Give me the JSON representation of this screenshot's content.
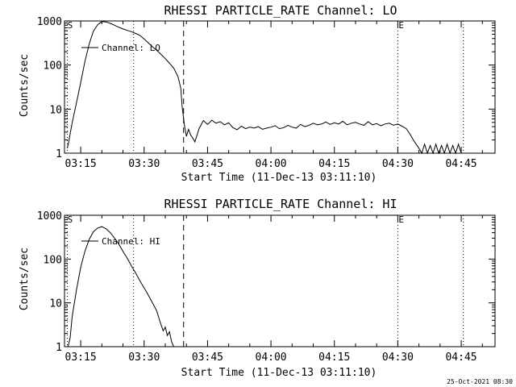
{
  "footer_timestamp": "25-Oct-2021 08:30",
  "chart_data": [
    {
      "type": "line",
      "title": "RHESSI PARTICLE_RATE Channel: LO",
      "xlabel": "Start Time (11-Dec-13 03:11:10)",
      "ylabel": "Counts/sec",
      "yscale": "log",
      "xlim": [
        "03:11:10",
        "04:53:00"
      ],
      "ylim": [
        1,
        1000
      ],
      "xticks": [
        "03:15",
        "03:30",
        "03:45",
        "04:00",
        "04:15",
        "04:30",
        "04:45"
      ],
      "yticks": [
        "1",
        "10",
        "100",
        "1000"
      ],
      "legend": {
        "label": "Channel: LO",
        "placement": "top-left"
      },
      "markers": {
        "S": "03:11:40",
        "E": "04:30:00"
      },
      "dotted_lines": [
        "03:11:50",
        "03:27:30",
        "04:30:00",
        "04:45:30"
      ],
      "dashed_lines": [
        "03:39:20"
      ],
      "series": [
        {
          "name": "Channel: LO",
          "x": [
            "03:11:50",
            "03:12:10",
            "03:13:00",
            "03:14:00",
            "03:15:00",
            "03:16:00",
            "03:17:00",
            "03:18:00",
            "03:19:00",
            "03:20:00",
            "03:21:00",
            "03:22:00",
            "03:23:00",
            "03:24:00",
            "03:25:00",
            "03:26:00",
            "03:27:00",
            "03:28:00",
            "03:29:00",
            "03:30:00",
            "03:31:00",
            "03:32:00",
            "03:33:00",
            "03:34:00",
            "03:35:00",
            "03:36:00",
            "03:37:00",
            "03:38:00",
            "03:38:40",
            "03:39:00",
            "03:39:30",
            "03:40:00",
            "03:40:30",
            "03:41:00",
            "03:41:30",
            "03:42:00",
            "03:43:00",
            "03:44:00",
            "03:45:00",
            "03:46:00",
            "03:47:00",
            "03:48:00",
            "03:49:00",
            "03:50:00",
            "03:51:00",
            "03:52:00",
            "03:53:00",
            "03:54:00",
            "03:55:00",
            "03:56:00",
            "03:57:00",
            "03:58:00",
            "03:59:00",
            "04:00:00",
            "04:01:00",
            "04:02:00",
            "04:03:00",
            "04:04:00",
            "04:05:00",
            "04:06:00",
            "04:07:00",
            "04:08:00",
            "04:09:00",
            "04:10:00",
            "04:11:00",
            "04:12:00",
            "04:13:00",
            "04:14:00",
            "04:15:00",
            "04:16:00",
            "04:17:00",
            "04:18:00",
            "04:19:00",
            "04:20:00",
            "04:21:00",
            "04:22:00",
            "04:23:00",
            "04:24:00",
            "04:25:00",
            "04:26:00",
            "04:27:00",
            "04:28:00",
            "04:29:00",
            "04:30:00",
            "04:31:00",
            "04:32:00",
            "04:33:00",
            "04:33:40",
            "04:34:20",
            "04:35:00",
            "04:35:40",
            "04:36:20",
            "04:37:00",
            "04:37:40",
            "04:38:20",
            "04:39:00",
            "04:39:40",
            "04:40:20",
            "04:41:00",
            "04:41:40",
            "04:42:20",
            "04:43:00",
            "04:43:40",
            "04:44:20",
            "04:45:00",
            "04:45:40",
            "04:46:00"
          ],
          "y": [
            1.3,
            1.8,
            5,
            14,
            40,
            120,
            300,
            580,
            820,
            970,
            950,
            880,
            800,
            720,
            660,
            610,
            570,
            520,
            470,
            390,
            320,
            260,
            215,
            175,
            140,
            110,
            85,
            55,
            30,
            11,
            4.5,
            2.4,
            3.5,
            2.6,
            2.2,
            1.8,
            3.6,
            5.5,
            4.5,
            5.6,
            4.8,
            5.2,
            4.4,
            4.9,
            3.8,
            3.4,
            4.1,
            3.6,
            3.9,
            3.7,
            4.0,
            3.5,
            3.7,
            3.9,
            4.2,
            3.6,
            3.8,
            4.3,
            3.9,
            3.7,
            4.5,
            4.0,
            4.3,
            4.8,
            4.4,
            4.6,
            5.1,
            4.5,
            4.9,
            4.6,
            5.3,
            4.4,
            4.8,
            5.0,
            4.6,
            4.3,
            5.2,
            4.4,
            4.7,
            4.2,
            4.6,
            4.8,
            4.3,
            4.6,
            4.1,
            3.6,
            2.6,
            2.0,
            1.6,
            1.3,
            1.0,
            1.6,
            1.0,
            1.5,
            1.0,
            1.6,
            1.0,
            1.5,
            1.0,
            1.6,
            1.0,
            1.5,
            1.0,
            1.6,
            1.0,
            1.0,
            1.0
          ]
        }
      ]
    },
    {
      "type": "line",
      "title": "RHESSI PARTICLE_RATE Channel: HI",
      "xlabel": "Start Time (11-Dec-13 03:11:10)",
      "ylabel": "Counts/sec",
      "yscale": "log",
      "xlim": [
        "03:11:10",
        "04:53:00"
      ],
      "ylim": [
        1,
        1000
      ],
      "xticks": [
        "03:15",
        "03:30",
        "03:45",
        "04:00",
        "04:15",
        "04:30",
        "04:45"
      ],
      "yticks": [
        "1",
        "10",
        "100",
        "1000"
      ],
      "legend": {
        "label": "Channel: HI",
        "placement": "top-left"
      },
      "markers": {
        "S": "03:11:40",
        "E": "04:30:00"
      },
      "dotted_lines": [
        "03:11:50",
        "03:27:30",
        "04:30:00",
        "04:45:30"
      ],
      "dashed_lines": [
        "03:39:20"
      ],
      "series": [
        {
          "name": "Channel: HI",
          "x": [
            "03:12:00",
            "03:12:30",
            "03:13:00",
            "03:14:00",
            "03:15:00",
            "03:16:00",
            "03:17:00",
            "03:18:00",
            "03:19:00",
            "03:20:00",
            "03:21:00",
            "03:22:00",
            "03:23:00",
            "03:24:00",
            "03:25:00",
            "03:26:00",
            "03:27:00",
            "03:28:00",
            "03:29:00",
            "03:30:00",
            "03:31:00",
            "03:32:00",
            "03:33:00",
            "03:33:30",
            "03:34:00",
            "03:34:30",
            "03:35:00",
            "03:35:30",
            "03:36:00",
            "03:36:30",
            "03:37:00"
          ],
          "y": [
            1.0,
            1.6,
            5,
            20,
            65,
            150,
            280,
            420,
            510,
            550,
            490,
            400,
            300,
            220,
            150,
            105,
            70,
            48,
            32,
            22,
            15,
            10,
            6.5,
            4.5,
            3.2,
            2.3,
            2.8,
            1.8,
            2.2,
            1.3,
            1.0
          ]
        }
      ]
    }
  ]
}
